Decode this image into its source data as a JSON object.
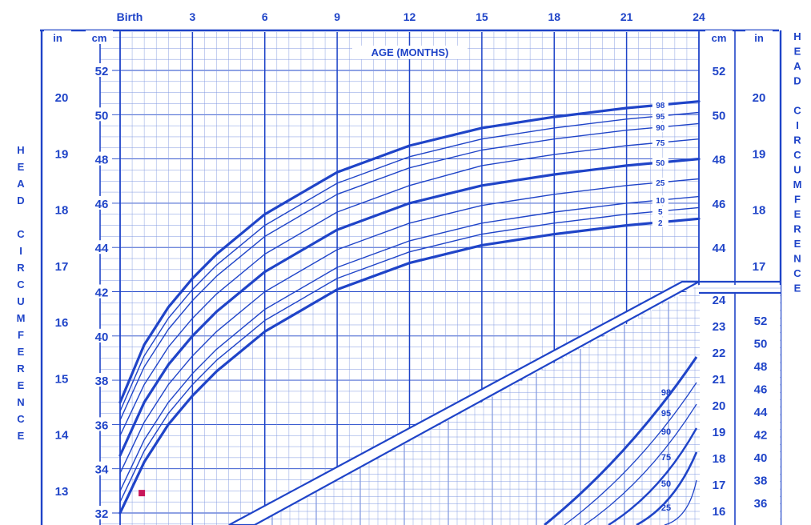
{
  "chart_data": {
    "type": "line",
    "x_axis": {
      "label": "AGE (MONTHS)",
      "unit": "months",
      "range": [
        0,
        24
      ],
      "ticks": [
        {
          "value": 0,
          "label": "Birth"
        },
        {
          "value": 3,
          "label": "3"
        },
        {
          "value": 6,
          "label": "6"
        },
        {
          "value": 9,
          "label": "9"
        },
        {
          "value": 12,
          "label": "12"
        },
        {
          "value": 15,
          "label": "15"
        },
        {
          "value": 18,
          "label": "18"
        },
        {
          "value": 21,
          "label": "21"
        },
        {
          "value": 24,
          "label": "24"
        }
      ]
    },
    "y_axis": {
      "label_letters": [
        "H",
        "E",
        "A",
        "D",
        " ",
        "C",
        "I",
        "R",
        "C",
        "U",
        "M",
        "F",
        "E",
        "R",
        "E",
        "N",
        "C",
        "E"
      ],
      "unit_cm": "cm",
      "unit_in": "in",
      "cm_range": [
        31.5,
        54.5
      ],
      "cm_ticks": [
        "32",
        "34",
        "36",
        "38",
        "40",
        "42",
        "44",
        "46",
        "48",
        "50",
        "52"
      ],
      "in_ticks": [
        "13",
        "14",
        "15",
        "16",
        "17",
        "18",
        "19",
        "20"
      ],
      "right_cm_ticks": [
        "44",
        "46",
        "48",
        "50",
        "52"
      ],
      "right_in_ticks": [
        "17",
        "18",
        "19",
        "20"
      ]
    },
    "series": [
      {
        "name": "98",
        "label": "98",
        "x": [
          0,
          1,
          2,
          3,
          4,
          6,
          9,
          12,
          15,
          18,
          21,
          24
        ],
        "y": [
          37.0,
          39.6,
          41.3,
          42.6,
          43.7,
          45.5,
          47.4,
          48.6,
          49.4,
          49.9,
          50.3,
          50.6
        ]
      },
      {
        "name": "95",
        "label": "95",
        "x": [
          0,
          1,
          2,
          3,
          4,
          6,
          9,
          12,
          15,
          18,
          21,
          24
        ],
        "y": [
          36.6,
          39.1,
          40.8,
          42.1,
          43.2,
          45.0,
          46.9,
          48.1,
          48.9,
          49.4,
          49.8,
          50.1
        ]
      },
      {
        "name": "90",
        "label": "90",
        "x": [
          0,
          1,
          2,
          3,
          4,
          6,
          9,
          12,
          15,
          18,
          21,
          24
        ],
        "y": [
          36.2,
          38.6,
          40.3,
          41.6,
          42.7,
          44.5,
          46.4,
          47.6,
          48.4,
          48.9,
          49.3,
          49.6
        ]
      },
      {
        "name": "75",
        "label": "75",
        "x": [
          0,
          1,
          2,
          3,
          4,
          6,
          9,
          12,
          15,
          18,
          21,
          24
        ],
        "y": [
          35.5,
          37.8,
          39.5,
          40.8,
          41.9,
          43.7,
          45.6,
          46.8,
          47.7,
          48.2,
          48.6,
          48.9
        ]
      },
      {
        "name": "50",
        "label": "50",
        "x": [
          0,
          1,
          2,
          3,
          4,
          6,
          9,
          12,
          15,
          18,
          21,
          24
        ],
        "y": [
          34.6,
          37.0,
          38.7,
          40.0,
          41.1,
          42.9,
          44.8,
          46.0,
          46.8,
          47.3,
          47.7,
          48.0
        ]
      },
      {
        "name": "25",
        "label": "25",
        "x": [
          0,
          1,
          2,
          3,
          4,
          6,
          9,
          12,
          15,
          18,
          21,
          24
        ],
        "y": [
          33.8,
          36.1,
          37.8,
          39.1,
          40.2,
          42.0,
          43.9,
          45.1,
          45.9,
          46.4,
          46.8,
          47.1
        ]
      },
      {
        "name": "10",
        "label": "10",
        "x": [
          0,
          1,
          2,
          3,
          4,
          6,
          9,
          12,
          15,
          18,
          21,
          24
        ],
        "y": [
          33.0,
          35.3,
          37.0,
          38.3,
          39.4,
          41.2,
          43.1,
          44.3,
          45.1,
          45.6,
          46.0,
          46.3
        ]
      },
      {
        "name": "5",
        "label": "5",
        "x": [
          0,
          1,
          2,
          3,
          4,
          6,
          9,
          12,
          15,
          18,
          21,
          24
        ],
        "y": [
          32.5,
          34.8,
          36.5,
          37.8,
          38.9,
          40.7,
          42.6,
          43.8,
          44.6,
          45.1,
          45.5,
          45.8
        ]
      },
      {
        "name": "2",
        "label": "2",
        "x": [
          0,
          1,
          2,
          3,
          4,
          6,
          9,
          12,
          15,
          18,
          21,
          24
        ],
        "y": [
          32.0,
          34.3,
          36.0,
          37.3,
          38.4,
          40.2,
          42.1,
          43.3,
          44.1,
          44.6,
          45.0,
          45.3
        ]
      }
    ],
    "data_point": {
      "x": 0.9,
      "y": 32.9,
      "color": "#c8175a"
    },
    "inset": {
      "cm_ticks": [
        "16",
        "17",
        "18",
        "19",
        "20",
        "21",
        "22",
        "23",
        "24"
      ],
      "in_ticks": [
        "36",
        "38",
        "40",
        "42",
        "44",
        "46",
        "48",
        "50",
        "52"
      ],
      "percentile_labels": [
        "98",
        "95",
        "90",
        "75",
        "50",
        "25"
      ]
    },
    "colors": {
      "ink": "#1f44c8",
      "grid": "#7f97e0",
      "background": "#ffffff",
      "point": "#c8175a"
    },
    "grid": true
  }
}
